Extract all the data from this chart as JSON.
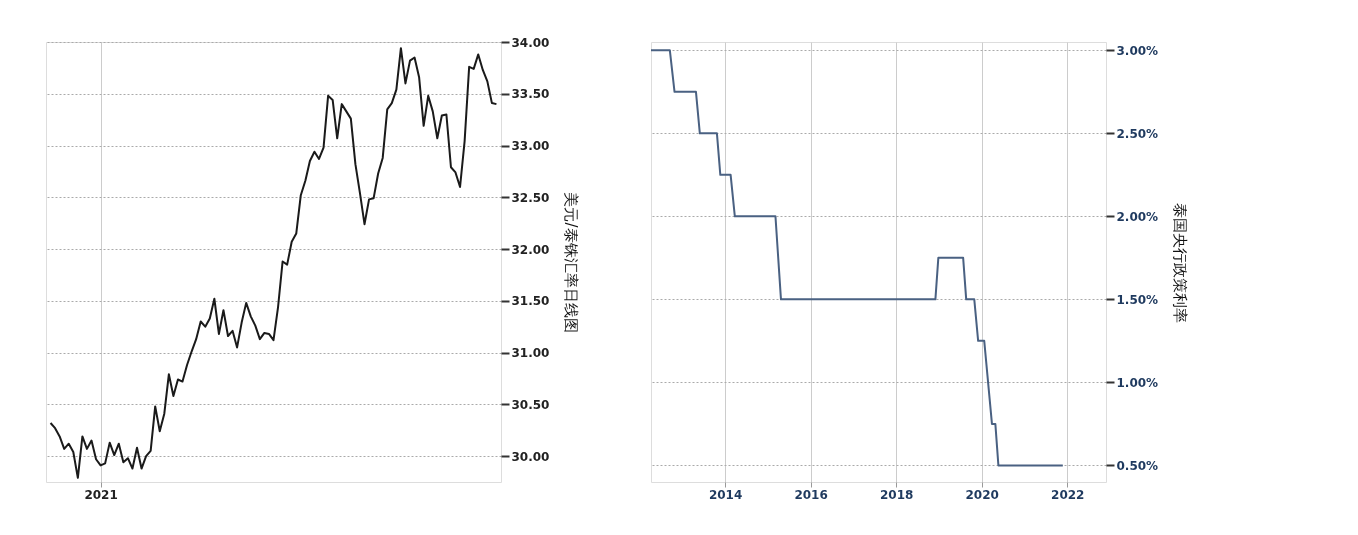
{
  "chart_data": [
    {
      "type": "line",
      "ylabel": "美元/泰铢汇率日线图",
      "categories": [
        null,
        null,
        null,
        null,
        null,
        null,
        null,
        null,
        null,
        null,
        null,
        "2021",
        null,
        null,
        null,
        null,
        null,
        null,
        null,
        null,
        null,
        null,
        null,
        null,
        null,
        null,
        null,
        null,
        null,
        null,
        null,
        null,
        null,
        null,
        null,
        null,
        null,
        null,
        null,
        null,
        null,
        null,
        null,
        null,
        null,
        null,
        null,
        null,
        null,
        null,
        null,
        null,
        null,
        null,
        null,
        null,
        null,
        null,
        null,
        null,
        null,
        null,
        null,
        null,
        null,
        null,
        null,
        null,
        null,
        null,
        null,
        null,
        null,
        null,
        null,
        null,
        null,
        null,
        null,
        null,
        null,
        null,
        null,
        null,
        null,
        null,
        null,
        null,
        null,
        null,
        null,
        null,
        null,
        null,
        null,
        null,
        null,
        null,
        null
      ],
      "ylim": [
        29.75,
        34.0
      ],
      "yticks": [
        {
          "value": 30,
          "label": "30.00"
        },
        {
          "value": 30.5,
          "label": "30.50"
        },
        {
          "value": 31,
          "label": "31.00"
        },
        {
          "value": 31.5,
          "label": "31.50"
        },
        {
          "value": 32,
          "label": "32.00"
        },
        {
          "value": 32.5,
          "label": "32.50"
        },
        {
          "value": 33,
          "label": "33.00"
        },
        {
          "value": 33.5,
          "label": "33.50"
        },
        {
          "value": 34,
          "label": "34.00"
        }
      ],
      "grid": true,
      "marker": "none",
      "line_style": "solid",
      "series": [
        {
          "color": "#1a1a1a",
          "values": [
            30.32,
            30.27,
            30.19,
            30.07,
            30.12,
            30.04,
            29.79,
            30.19,
            30.07,
            30.15,
            29.97,
            29.91,
            29.93,
            30.13,
            30.01,
            30.12,
            29.94,
            29.98,
            29.88,
            30.08,
            29.88,
            30.0,
            30.05,
            30.48,
            30.24,
            30.41,
            30.79,
            30.58,
            30.74,
            30.72,
            30.88,
            31.01,
            31.13,
            31.3,
            31.25,
            31.33,
            31.52,
            31.18,
            31.41,
            31.16,
            31.21,
            31.05,
            31.29,
            31.48,
            31.35,
            31.26,
            31.13,
            31.19,
            31.18,
            31.12,
            31.44,
            31.88,
            31.85,
            32.07,
            32.15,
            32.52,
            32.66,
            32.85,
            32.94,
            32.87,
            32.98,
            33.48,
            33.44,
            33.07,
            33.4,
            33.33,
            33.26,
            32.82,
            32.54,
            32.24,
            32.48,
            32.49,
            32.73,
            32.88,
            33.35,
            33.41,
            33.54,
            33.94,
            33.6,
            33.82,
            33.85,
            33.66,
            33.19,
            33.48,
            33.33,
            33.07,
            33.29,
            33.3,
            32.79,
            32.74,
            32.6,
            33.04,
            33.76,
            33.74,
            33.88,
            33.73,
            33.62,
            33.41,
            33.4
          ]
        }
      ]
    },
    {
      "type": "line",
      "ylabel": "泰国央行政策利率",
      "xlim": [
        "2012-04-08",
        "2022-11-28"
      ],
      "xticks": [
        "2014",
        "2016",
        "2018",
        "2020",
        "2022"
      ],
      "ylim": [
        0.4,
        3.05
      ],
      "yticks": [
        {
          "value": 0.5,
          "label": "0.50%"
        },
        {
          "value": 1,
          "label": "1.00%"
        },
        {
          "value": 1.5,
          "label": "1.50%"
        },
        {
          "value": 2,
          "label": "2.00%"
        },
        {
          "value": 2.5,
          "label": "2.50%"
        },
        {
          "value": 3,
          "label": "3.00%"
        }
      ],
      "grid": true,
      "marker": "none",
      "line_style": "solid",
      "series": [
        {
          "color": "#4a6182",
          "x": [
            "2012-04-08",
            "2012-09-16",
            "2012-10-26",
            "2013-04-27",
            "2013-05-30",
            "2013-10-23",
            "2013-11-21",
            "2014-02-17",
            "2014-03-25",
            "2015-03-07",
            "2015-04-23",
            "2018-12-02",
            "2018-12-27",
            "2019-07-27",
            "2019-08-22",
            "2019-10-30",
            "2019-12-02",
            "2020-01-23",
            "2020-03-29",
            "2020-04-27",
            "2020-05-23",
            "2021-11-24"
          ],
          "values": [
            3.0,
            3.0,
            2.75,
            2.75,
            2.5,
            2.5,
            2.25,
            2.25,
            2.0,
            2.0,
            1.5,
            1.5,
            1.75,
            1.75,
            1.5,
            1.5,
            1.25,
            1.25,
            0.75,
            0.75,
            0.5,
            0.5
          ]
        }
      ]
    }
  ]
}
